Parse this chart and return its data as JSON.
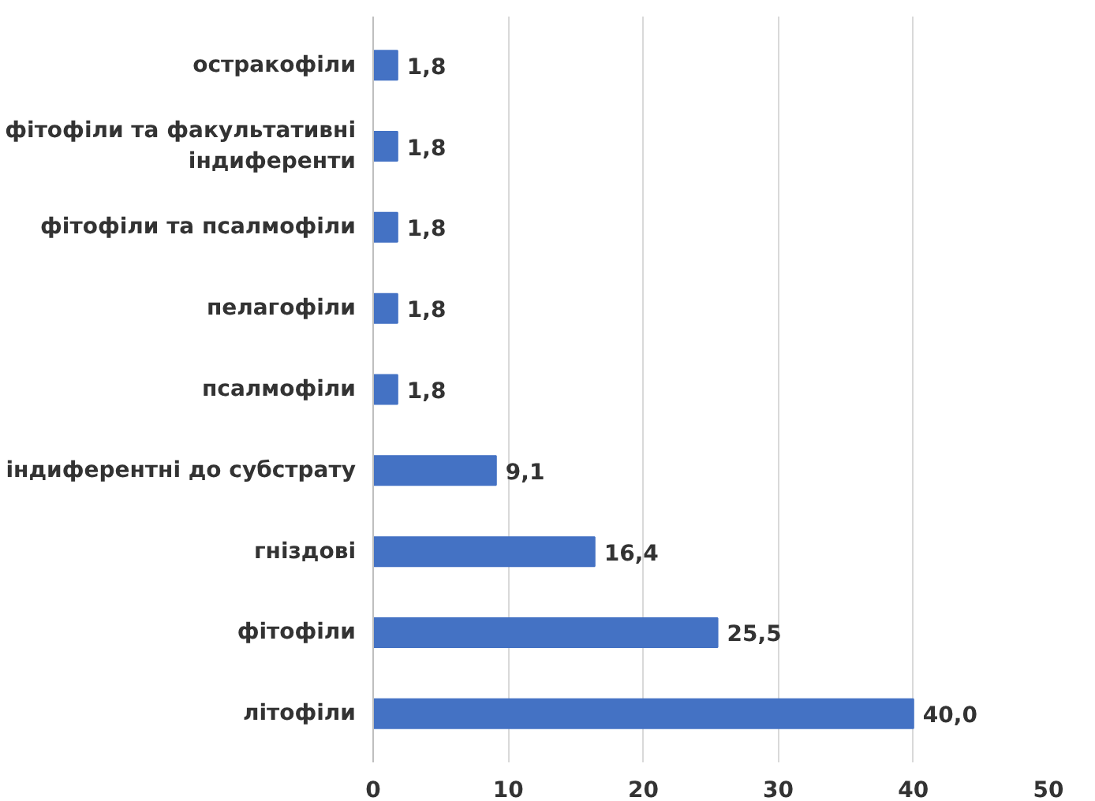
{
  "chart_data": {
    "type": "bar",
    "orientation": "horizontal",
    "categories": [
      "остракофіли",
      "фітофіли та факультативні індиференти",
      "фітофіли та псалмофіли",
      "пелагофіли",
      "псалмофіли",
      "індиферентні до субстрату",
      "гніздові",
      "фітофіли",
      "літофіли"
    ],
    "values": [
      1.8,
      1.8,
      1.8,
      1.8,
      1.8,
      9.1,
      16.4,
      25.5,
      40.0
    ],
    "value_labels": [
      "1,8",
      "1,8",
      "1,8",
      "1,8",
      "1,8",
      "9,1",
      "16,4",
      "25,5",
      "40,0"
    ],
    "color": "#4472c4",
    "xlim": [
      0,
      50
    ],
    "xticks": [
      0,
      10,
      20,
      30,
      40,
      50
    ],
    "grid": "x"
  }
}
